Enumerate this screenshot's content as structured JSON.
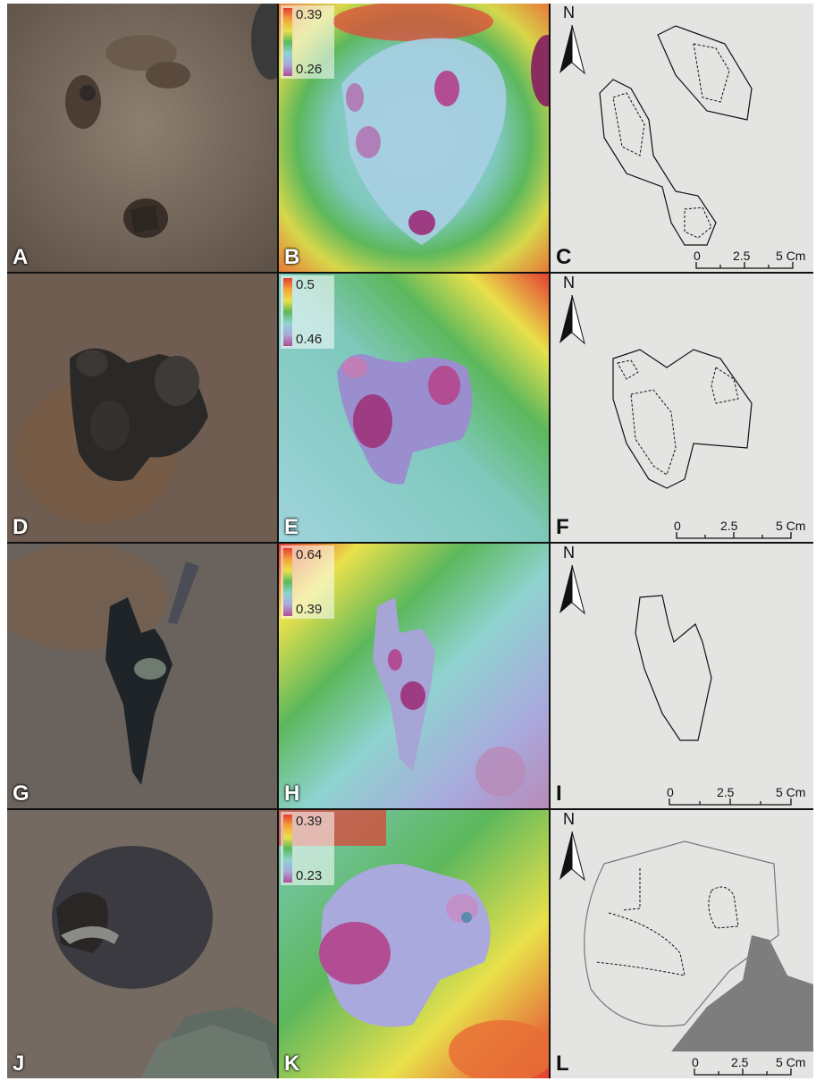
{
  "rows": [
    {
      "photo": {
        "letter": "A"
      },
      "dem": {
        "letter": "B",
        "legend_max": "0.39",
        "legend_min": "0.26"
      },
      "outline": {
        "letter": "C",
        "north": "N",
        "scale": {
          "zero": "0",
          "mid": "2.5",
          "end": "5 Cm"
        }
      }
    },
    {
      "photo": {
        "letter": "D"
      },
      "dem": {
        "letter": "E",
        "legend_max": "0.5",
        "legend_min": "0.46"
      },
      "outline": {
        "letter": "F",
        "north": "N",
        "scale": {
          "zero": "0",
          "mid": "2.5",
          "end": "5 Cm"
        }
      }
    },
    {
      "photo": {
        "letter": "G"
      },
      "dem": {
        "letter": "H",
        "legend_max": "0.64",
        "legend_min": "0.39"
      },
      "outline": {
        "letter": "I",
        "north": "N",
        "scale": {
          "zero": "0",
          "mid": "2.5",
          "end": "5 Cm"
        }
      }
    },
    {
      "photo": {
        "letter": "J"
      },
      "dem": {
        "letter": "K",
        "legend_max": "0.39",
        "legend_min": "0.23"
      },
      "outline": {
        "letter": "L",
        "north": "N",
        "scale": {
          "zero": "0",
          "mid": "2.5",
          "end": "5 Cm"
        }
      }
    }
  ],
  "colors": {
    "sediment": "#7a6a5c",
    "print_dark": "#2f2a28",
    "dem_red": "#e33f32",
    "dem_green": "#5cb85c",
    "dem_blue": "#a9d3e0",
    "dem_magenta": "#b24d94",
    "outline_bg": "#e4e4e2",
    "rock_fill": "#7d7d7d"
  }
}
